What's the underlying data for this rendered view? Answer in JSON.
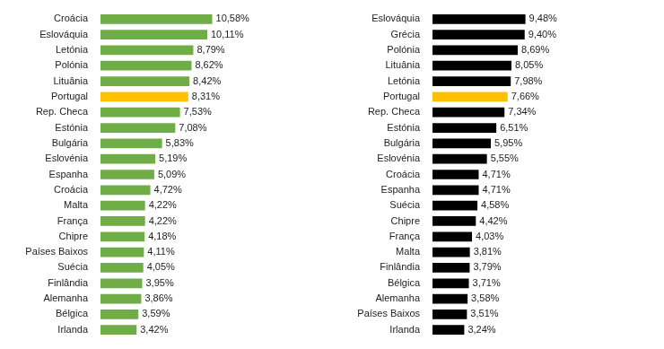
{
  "chart_data": [
    {
      "type": "bar",
      "orientation": "horizontal",
      "categories": [
        "Croácia",
        "Eslováquia",
        "Letónia",
        "Polónia",
        "Lituânia",
        "Portugal",
        "Rep. Checa",
        "Estónia",
        "Bulgária",
        "Eslovénia",
        "Espanha",
        "Croácia",
        "Malta",
        "França",
        "Chipre",
        "Países Baixos",
        "Suécia",
        "Finlândia",
        "Alemanha",
        "Bélgica",
        "Irlanda"
      ],
      "values": [
        10.58,
        10.11,
        8.79,
        8.62,
        8.42,
        8.31,
        7.53,
        7.08,
        5.83,
        5.19,
        5.09,
        4.72,
        4.22,
        4.22,
        4.18,
        4.11,
        4.05,
        3.95,
        3.86,
        3.59,
        3.42
      ],
      "value_labels": [
        "10,58%",
        "10,11%",
        "8,79%",
        "8,62%",
        "8,42%",
        "8,31%",
        "7,53%",
        "7,08%",
        "5,83%",
        "5,19%",
        "5,09%",
        "4,72%",
        "4,22%",
        "4,22%",
        "4,18%",
        "4,11%",
        "4,05%",
        "3,95%",
        "3,86%",
        "3,59%",
        "3,42%"
      ],
      "colors": [
        "#70ad47",
        "#70ad47",
        "#70ad47",
        "#70ad47",
        "#70ad47",
        "#ffc000",
        "#70ad47",
        "#70ad47",
        "#70ad47",
        "#70ad47",
        "#70ad47",
        "#70ad47",
        "#70ad47",
        "#70ad47",
        "#70ad47",
        "#70ad47",
        "#70ad47",
        "#70ad47",
        "#70ad47",
        "#70ad47",
        "#70ad47"
      ],
      "xlim": [
        0,
        13
      ],
      "data_labels": true,
      "tick_labels": "y",
      "grid": false
    },
    {
      "type": "bar",
      "orientation": "horizontal",
      "categories": [
        "Eslováquia",
        "Grécia",
        "Polónia",
        "Lituânia",
        "Letónia",
        "Portugal",
        "Rep. Checa",
        "Estónia",
        "Bulgária",
        "Eslovénia",
        "Croácia",
        "Espanha",
        "Suécia",
        "Chipre",
        "França",
        "Malta",
        "Finlândia",
        "Bélgica",
        "Alemanha",
        "Países Baixos",
        "Irlanda"
      ],
      "values": [
        9.48,
        9.4,
        8.69,
        8.05,
        7.98,
        7.66,
        7.34,
        6.51,
        5.95,
        5.55,
        4.71,
        4.71,
        4.58,
        4.42,
        4.03,
        3.81,
        3.79,
        3.71,
        3.58,
        3.51,
        3.24
      ],
      "value_labels": [
        "9,48%",
        "9,40%",
        "8,69%",
        "8,05%",
        "7,98%",
        "7,66%",
        "7,34%",
        "6,51%",
        "5,95%",
        "5,55%",
        "4,71%",
        "4,71%",
        "4,58%",
        "4,42%",
        "4,03%",
        "3,81%",
        "3,79%",
        "3,71%",
        "3,58%",
        "3,51%",
        "3,24%"
      ],
      "colors": [
        "#000000",
        "#000000",
        "#000000",
        "#000000",
        "#000000",
        "#ffc000",
        "#000000",
        "#000000",
        "#000000",
        "#000000",
        "#000000",
        "#000000",
        "#000000",
        "#000000",
        "#000000",
        "#000000",
        "#000000",
        "#000000",
        "#000000",
        "#000000",
        "#000000"
      ],
      "xlim": [
        0,
        14
      ],
      "data_labels": true,
      "tick_labels": "y",
      "grid": false
    }
  ]
}
